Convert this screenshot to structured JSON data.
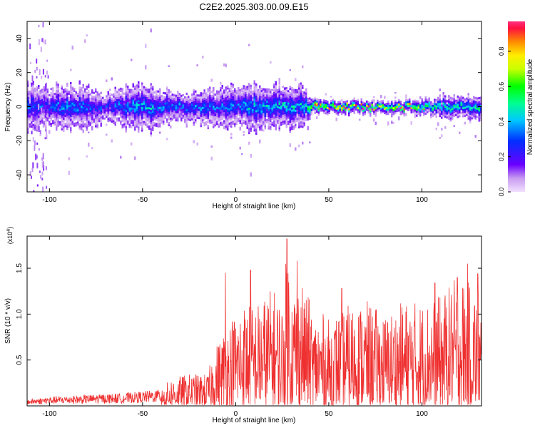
{
  "title": "C2E2.2025.303.00.09.E15",
  "chart_data": [
    {
      "type": "heatmap",
      "xlabel": "Height of straight line (km)",
      "ylabel": "Frequency (Hz)",
      "xlim": [
        -112,
        132
      ],
      "ylim": [
        -50,
        50
      ],
      "x_ticks": [
        -100,
        -50,
        0,
        50,
        100
      ],
      "y_ticks": [
        -40,
        -20,
        0,
        20,
        40
      ],
      "colorbar": {
        "label": "Normalized spectral amplitude",
        "range": [
          0.0,
          0.97
        ],
        "ticks": [
          0.0,
          0.2,
          0.4,
          0.6,
          0.8
        ],
        "tick_labels": [
          "0.0",
          "0.2",
          "0.4",
          "0.6",
          "0.8"
        ]
      },
      "band_profile": {
        "x": [
          -110,
          -100,
          -90,
          -80,
          -70,
          -60,
          -50,
          -40,
          -30,
          -20,
          -10,
          0,
          10,
          20,
          30,
          36,
          40,
          50,
          60,
          70,
          80,
          90,
          100,
          110,
          120,
          130
        ],
        "halfwidth": [
          12,
          10,
          12,
          10,
          7,
          11,
          13,
          9,
          8,
          8,
          10,
          12,
          13,
          12,
          12,
          10,
          4,
          3,
          3,
          3,
          3,
          3,
          4,
          5,
          6,
          6
        ],
        "peak": [
          0.35,
          0.35,
          0.4,
          0.35,
          0.3,
          0.4,
          0.45,
          0.4,
          0.4,
          0.4,
          0.35,
          0.4,
          0.45,
          0.45,
          0.5,
          0.45,
          0.85,
          0.95,
          0.95,
          0.92,
          0.9,
          0.92,
          0.7,
          0.55,
          0.55,
          0.55
        ]
      }
    },
    {
      "type": "line",
      "xlabel": "Height of straight line (km)",
      "ylabel": "SNR (10 * v/v)",
      "y_scale_label": "(x10",
      "y_scale_exp": "4",
      "y_scale_close": ")",
      "xlim": [
        -112,
        132
      ],
      "ylim": [
        0,
        1.85
      ],
      "x_ticks": [
        -100,
        -50,
        0,
        50,
        100
      ],
      "y_ticks": [
        0.5,
        1.0,
        1.5
      ],
      "y_tick_labels": [
        "0.5",
        "1.0",
        "1.5"
      ],
      "series": [
        {
          "color": "#ef3030",
          "envelope_x": [
            -112,
            -100,
            -80,
            -60,
            -40,
            -35,
            -25,
            -15,
            -12,
            -5,
            0,
            5,
            10,
            15,
            20,
            25,
            28,
            30,
            35,
            38,
            42,
            45,
            50,
            60,
            70,
            80,
            90,
            100,
            110,
            120,
            125,
            130,
            132
          ],
          "envelope_y": [
            0.07,
            0.1,
            0.12,
            0.14,
            0.18,
            0.3,
            0.35,
            0.35,
            0.6,
            0.9,
            1.05,
            1.15,
            1.1,
            1.2,
            1.3,
            1.15,
            1.82,
            1.3,
            1.45,
            1.3,
            0.95,
            1.05,
            0.95,
            1.1,
            1.15,
            1.0,
            1.15,
            1.15,
            1.2,
            1.45,
            1.35,
            1.3,
            1.2
          ],
          "peaks": [
            [
              27.5,
              1.82
            ],
            [
              33,
              1.58
            ],
            [
              -5.5,
              1.45
            ],
            [
              8,
              1.48
            ],
            [
              124.5,
              1.55
            ],
            [
              119,
              1.4
            ],
            [
              130,
              1.44
            ],
            [
              107,
              1.34
            ],
            [
              57,
              1.28
            ],
            [
              37,
              1.12
            ]
          ]
        }
      ]
    }
  ]
}
